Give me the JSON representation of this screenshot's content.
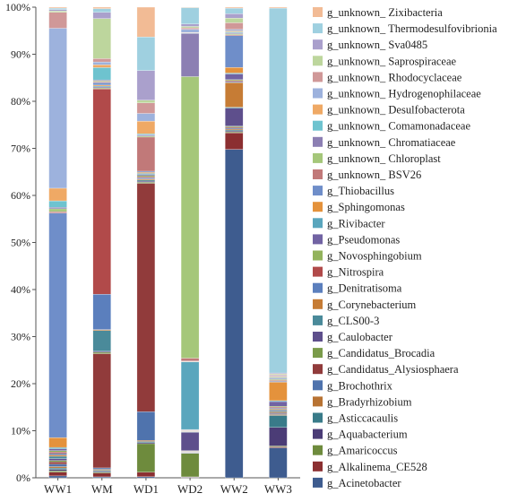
{
  "chart_data": {
    "type": "bar",
    "stacked": true,
    "percent": true,
    "categories": [
      "WW1",
      "WM",
      "WD1",
      "WD2",
      "WW2",
      "WW3"
    ],
    "ylim": [
      0,
      100
    ],
    "yticks": [
      "0%",
      "10%",
      "20%",
      "30%",
      "40%",
      "50%",
      "60%",
      "70%",
      "80%",
      "90%",
      "100%"
    ],
    "title": "",
    "xlabel": "",
    "ylabel": "",
    "legend_position": "right",
    "series": [
      {
        "name": "g_Acinetobacter",
        "color": "#3e5c8f",
        "values": [
          0.4,
          0.2,
          0.2,
          0.1,
          69.3,
          6.5
        ]
      },
      {
        "name": "g_Alkalinema_CE528",
        "color": "#8b2f31",
        "values": [
          0.8,
          0.8,
          0.8,
          0.1,
          3.5,
          0.2
        ]
      },
      {
        "name": "g_Amaricoccus",
        "color": "#6e8b3d",
        "values": [
          0.3,
          0.2,
          5.2,
          5.0,
          0.2,
          0.2
        ]
      },
      {
        "name": "g_Aquabacterium",
        "color": "#4b3c76",
        "values": [
          0.3,
          0.2,
          0.2,
          0.1,
          0.2,
          4.0
        ]
      },
      {
        "name": "g_Asticcacaulis",
        "color": "#397b89",
        "values": [
          0.3,
          0.2,
          0.2,
          0.1,
          0.2,
          2.6
        ]
      },
      {
        "name": "g_Bradyrhizobium",
        "color": "#b87333",
        "values": [
          0.3,
          0.2,
          0.2,
          0.1,
          0.2,
          0.2
        ]
      },
      {
        "name": "g_Brochothrix",
        "color": "#4f73ad",
        "values": [
          0.5,
          0.3,
          5.2,
          0.1,
          0.2,
          0.2
        ]
      },
      {
        "name": "g_Candidatus_Alysiosphaera",
        "color": "#913b3b",
        "values": [
          0.5,
          24.2,
          41.5,
          0.1,
          0.2,
          0.2
        ]
      },
      {
        "name": "g_Candidatus_Brocadia",
        "color": "#7a9b4a",
        "values": [
          0.3,
          0.3,
          0.2,
          0.1,
          0.2,
          0.2
        ]
      },
      {
        "name": "g_Caulobacter",
        "color": "#5e4f8c",
        "values": [
          0.4,
          0.2,
          0.2,
          3.9,
          3.8,
          0.2
        ]
      },
      {
        "name": "g_CLS00-3",
        "color": "#4a8a9a",
        "values": [
          0.5,
          4.4,
          0.2,
          0.1,
          0.2,
          0.2
        ]
      },
      {
        "name": "g_Corynebacterium",
        "color": "#c67c35",
        "values": [
          0.3,
          0.2,
          0.2,
          0.1,
          5.2,
          0.2
        ]
      },
      {
        "name": "g_Denitratisoma",
        "color": "#5b7fbd",
        "values": [
          0.3,
          7.5,
          0.2,
          0.1,
          0.2,
          0.2
        ]
      },
      {
        "name": "g_Nitrospira",
        "color": "#b14a4a",
        "values": [
          0.3,
          43.5,
          0.2,
          0.1,
          0.2,
          0.2
        ]
      },
      {
        "name": "g_Novosphingobium",
        "color": "#93b35c",
        "values": [
          0.3,
          0.2,
          0.2,
          0.1,
          0.2,
          0.2
        ]
      },
      {
        "name": "g_Pseudomonas",
        "color": "#7163a3",
        "values": [
          0.4,
          0.2,
          0.2,
          0.1,
          1.2,
          1.0
        ]
      },
      {
        "name": "g_Rivibacter",
        "color": "#5aa6bd",
        "values": [
          0.3,
          0.2,
          0.2,
          14.4,
          0.2,
          0.2
        ]
      },
      {
        "name": "g_Sphingomonas",
        "color": "#e4923c",
        "values": [
          2.1,
          0.2,
          0.2,
          0.1,
          1.2,
          4.0
        ]
      },
      {
        "name": "g_Thiobacillus",
        "color": "#6f8ec9",
        "values": [
          48.0,
          0.5,
          0.2,
          0.1,
          6.7,
          0.2
        ]
      },
      {
        "name": "g_unknown_ BSV26",
        "color": "#c17979",
        "values": [
          0.3,
          0.2,
          6.2,
          0.6,
          0.2,
          0.2
        ]
      },
      {
        "name": "g_unknown_ Chloroplast",
        "color": "#a5c77a",
        "values": [
          0.6,
          0.2,
          0.2,
          60.0,
          0.2,
          0.2
        ]
      },
      {
        "name": "g_unknown_ Chromatiaceae",
        "color": "#8c7fb3",
        "values": [
          0.3,
          0.2,
          0.2,
          9.2,
          0.2,
          0.2
        ]
      },
      {
        "name": "g_unknown_ Comamonadaceae",
        "color": "#6ec3cf",
        "values": [
          1.4,
          2.6,
          0.2,
          0.1,
          0.2,
          0.2
        ]
      },
      {
        "name": "g_unknown_ Desulfobacterota",
        "color": "#efa965",
        "values": [
          2.7,
          0.6,
          2.3,
          0.1,
          0.2,
          0.2
        ]
      },
      {
        "name": "g_unknown_ Hydrogenophilaceae",
        "color": "#9db2dd",
        "values": [
          34.2,
          0.6,
          1.4,
          0.7,
          0.3,
          0.2
        ]
      },
      {
        "name": "g_unknown_ Rhodocyclaceae",
        "color": "#d09898",
        "values": [
          3.4,
          0.7,
          1.9,
          0.3,
          1.4,
          0.2
        ]
      },
      {
        "name": "g_unknown_ Saprospiraceae",
        "color": "#bdd69d",
        "values": [
          0.3,
          8.5,
          0.5,
          0.3,
          1.0,
          0.2
        ]
      },
      {
        "name": "g_unknown_ Sva0485",
        "color": "#aaa0cc",
        "values": [
          0.3,
          1.3,
          5.4,
          0.5,
          0.9,
          0.2
        ]
      },
      {
        "name": "g_unknown_ Thermodesulfovibrionia",
        "color": "#9fd0e0",
        "values": [
          0.3,
          0.8,
          6.1,
          3.5,
          1.2,
          79.0
        ]
      },
      {
        "name": "g_unknown_ Zixibacteria",
        "color": "#f2bb95",
        "values": [
          0.2,
          0.3,
          5.4,
          0.1,
          0.2,
          0.2
        ]
      }
    ]
  }
}
